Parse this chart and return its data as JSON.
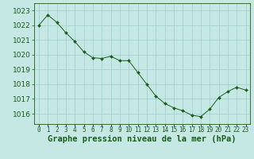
{
  "x": [
    0,
    1,
    2,
    3,
    4,
    5,
    6,
    7,
    8,
    9,
    10,
    11,
    12,
    13,
    14,
    15,
    16,
    17,
    18,
    19,
    20,
    21,
    22,
    23
  ],
  "y": [
    1022.0,
    1022.7,
    1022.2,
    1021.5,
    1020.9,
    1020.2,
    1019.8,
    1019.75,
    1019.9,
    1019.6,
    1019.6,
    1018.8,
    1018.0,
    1017.2,
    1016.7,
    1016.4,
    1016.2,
    1015.9,
    1015.8,
    1016.3,
    1017.1,
    1017.5,
    1017.8,
    1017.6
  ],
  "line_color": "#1a5c1a",
  "marker": "D",
  "marker_size": 2.0,
  "background_color": "#c5e8e5",
  "grid_color": "#9dcece",
  "xlabel": "Graphe pression niveau de la mer (hPa)",
  "xlabel_fontsize": 7.5,
  "xlabel_color": "#1a5c1a",
  "ylabel_ticks": [
    1016,
    1017,
    1018,
    1019,
    1020,
    1021,
    1022,
    1023
  ],
  "ylim": [
    1015.3,
    1023.5
  ],
  "xlim": [
    -0.5,
    23.5
  ],
  "ytick_fontsize": 6.5,
  "xtick_fontsize": 5.5,
  "tick_color": "#1a5c1a",
  "spine_color": "#1a5c1a"
}
